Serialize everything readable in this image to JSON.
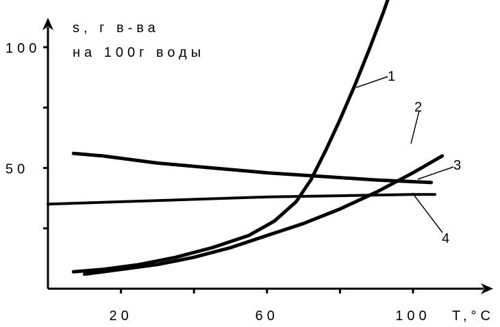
{
  "chart_data": {
    "type": "line",
    "ylabel_line1": "s, г в-ва",
    "ylabel_line2": "на 100г воды",
    "xlabel": "T,°C",
    "xlim": [
      0,
      120
    ],
    "ylim": [
      0,
      115
    ],
    "x_ticks": [
      20,
      40,
      60,
      80,
      100
    ],
    "x_tick_labels": [
      {
        "value": 20,
        "text": "20"
      },
      {
        "value": 60,
        "text": "60"
      },
      {
        "value": 100,
        "text": "100"
      }
    ],
    "y_ticks": [
      25,
      50,
      75,
      100
    ],
    "y_tick_labels": [
      {
        "value": 50,
        "text": "50"
      },
      {
        "value": 100,
        "text": "100"
      }
    ],
    "series": [
      {
        "name": "1",
        "x": [
          7,
          15,
          25,
          35,
          45,
          55,
          62,
          68,
          72,
          76,
          80,
          84,
          88,
          92,
          95
        ],
        "y": [
          7,
          8,
          10,
          13,
          17,
          22,
          28,
          36,
          45,
          57,
          70,
          84,
          99,
          115,
          128
        ]
      },
      {
        "name": "2",
        "x": [
          10,
          20,
          30,
          40,
          50,
          60,
          70,
          80,
          90,
          100,
          108
        ],
        "y": [
          6,
          8,
          10,
          13,
          17,
          22,
          27,
          33,
          40,
          48,
          55
        ]
      },
      {
        "name": "3",
        "x": [
          7,
          15,
          30,
          45,
          60,
          75,
          90,
          105
        ],
        "y": [
          56,
          55,
          52,
          50,
          48,
          46.5,
          45,
          44
        ]
      },
      {
        "name": "4",
        "x": [
          0,
          20,
          40,
          60,
          80,
          100,
          106
        ],
        "y": [
          35,
          36,
          37,
          38,
          38.5,
          39,
          39
        ]
      }
    ]
  }
}
